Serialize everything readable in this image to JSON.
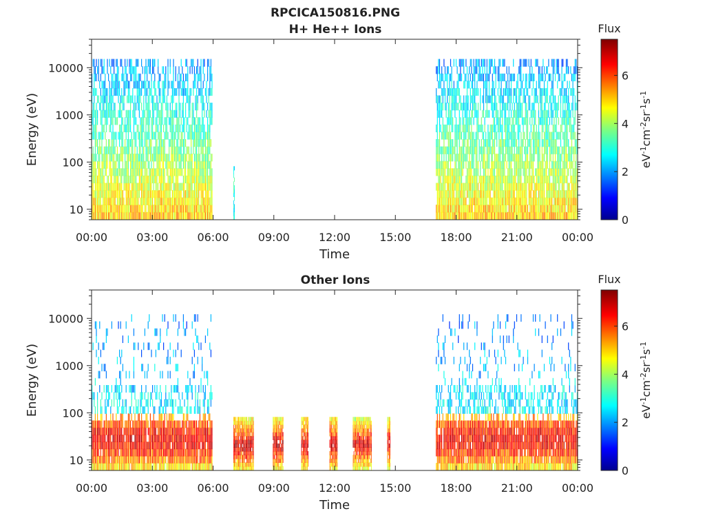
{
  "figure": {
    "title": "RPCICA150816.PNG"
  },
  "chart_data": [
    {
      "type": "heatmap",
      "title": "H+ He++ Ions",
      "xlabel": "Time",
      "ylabel": "Energy (eV)",
      "x_ticks": [
        "00:00",
        "03:00",
        "06:00",
        "09:00",
        "12:00",
        "15:00",
        "18:00",
        "21:00",
        "00:00"
      ],
      "xlim_hours": [
        0,
        24
      ],
      "y_scale": "log",
      "ylim": [
        6,
        40000
      ],
      "y_ticks": [
        {
          "value": 10,
          "label": "10"
        },
        {
          "value": 100,
          "label": "100"
        },
        {
          "value": 1000,
          "label": "1000"
        },
        {
          "value": 10000,
          "label": "10000"
        }
      ],
      "colorbar": {
        "title": "Flux",
        "label": "eV-1cm-2sr-1s-1",
        "range": [
          0,
          7.5
        ],
        "ticks": [
          "0",
          "2",
          "4",
          "6"
        ],
        "colormap": "jet"
      },
      "data_intervals": [
        {
          "start": 0.0,
          "end": 5.95,
          "e_min": 6,
          "e_max": 15000,
          "flux_low_energy": 5.0,
          "flux_mid_energy": 3.0,
          "flux_high_energy": 1.8
        },
        {
          "start": 7.0,
          "end": 7.08,
          "e_min": 6,
          "e_max": 80,
          "flux_low_energy": 3.0,
          "flux_mid_energy": 2.8,
          "flux_high_energy": 2.8
        },
        {
          "start": 17.0,
          "end": 24.0,
          "e_min": 6,
          "e_max": 15000,
          "flux_low_energy": 5.0,
          "flux_mid_energy": 3.0,
          "flux_high_energy": 1.8
        }
      ]
    },
    {
      "type": "heatmap",
      "title": "Other Ions",
      "xlabel": "Time",
      "ylabel": "Energy (eV)",
      "x_ticks": [
        "00:00",
        "03:00",
        "06:00",
        "09:00",
        "12:00",
        "15:00",
        "18:00",
        "21:00",
        "00:00"
      ],
      "xlim_hours": [
        0,
        24
      ],
      "y_scale": "log",
      "ylim": [
        6,
        40000
      ],
      "y_ticks": [
        {
          "value": 10,
          "label": "10"
        },
        {
          "value": 100,
          "label": "100"
        },
        {
          "value": 1000,
          "label": "1000"
        },
        {
          "value": 10000,
          "label": "10000"
        }
      ],
      "colorbar": {
        "title": "Flux",
        "label": "eV-1cm-2sr-1s-1",
        "range": [
          0,
          7.5
        ],
        "ticks": [
          "0",
          "2",
          "4",
          "6"
        ],
        "colormap": "jet"
      },
      "data_intervals": [
        {
          "start": 0.0,
          "end": 5.95,
          "e_min": 6,
          "e_max": 12000,
          "flux_peak": 6.5,
          "peak_energy": [
            20,
            50
          ]
        },
        {
          "start": 7.0,
          "end": 8.0,
          "e_min": 6,
          "e_max": 80,
          "flux_peak": 7.0,
          "peak_energy": [
            10,
            80
          ]
        },
        {
          "start": 8.95,
          "end": 9.45,
          "e_min": 6,
          "e_max": 80,
          "flux_peak": 7.0,
          "peak_energy": [
            10,
            80
          ]
        },
        {
          "start": 10.35,
          "end": 10.7,
          "e_min": 6,
          "e_max": 80,
          "flux_peak": 7.0,
          "peak_energy": [
            10,
            80
          ]
        },
        {
          "start": 11.75,
          "end": 12.15,
          "e_min": 6,
          "e_max": 80,
          "flux_peak": 7.0,
          "peak_energy": [
            10,
            80
          ]
        },
        {
          "start": 12.9,
          "end": 13.8,
          "e_min": 6,
          "e_max": 80,
          "flux_peak": 6.8,
          "peak_energy": [
            10,
            80
          ]
        },
        {
          "start": 14.6,
          "end": 14.75,
          "e_min": 6,
          "e_max": 80,
          "flux_peak": 6.8,
          "peak_energy": [
            10,
            80
          ]
        },
        {
          "start": 17.0,
          "end": 24.0,
          "e_min": 6,
          "e_max": 12000,
          "flux_peak": 6.5,
          "peak_energy": [
            20,
            50
          ]
        }
      ]
    }
  ]
}
